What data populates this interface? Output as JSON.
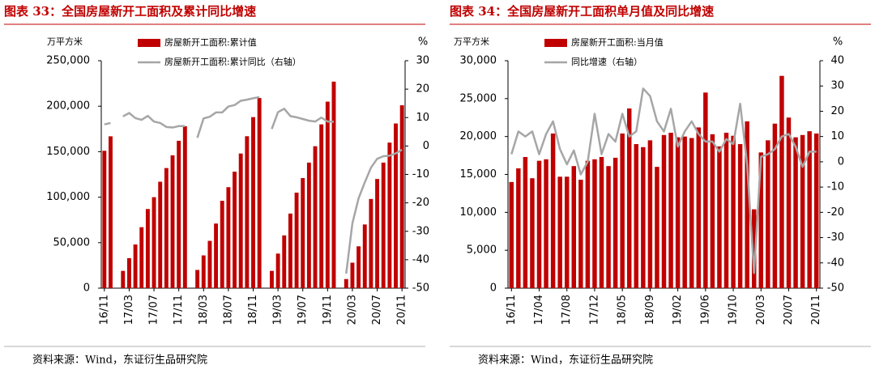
{
  "chart_data": [
    {
      "type": "bar_line",
      "title": "图表 33：全国房屋新开工面积及累计同比增速",
      "y_label": "万平方米",
      "y2_label": "%",
      "source": "资料来源：Wind，东证衍生品研究院",
      "categories": [
        "16/11",
        null,
        null,
        null,
        "17/03",
        null,
        null,
        null,
        "17/07",
        null,
        null,
        null,
        "17/11",
        null,
        null,
        null,
        "18/03",
        null,
        null,
        null,
        "18/07",
        null,
        null,
        null,
        "18/11",
        null,
        null,
        null,
        "19/03",
        null,
        null,
        null,
        "19/07",
        null,
        null,
        null,
        "19/11",
        null,
        null,
        null,
        "20/03",
        null,
        null,
        null,
        "20/07",
        null,
        null,
        null,
        "20/11"
      ],
      "series": [
        {
          "name": "房屋新开工面积:累计值",
          "color": "#c00000",
          "kind": "bar",
          "values": [
            151000,
            166900,
            null,
            19000,
            33000,
            48000,
            67000,
            87000,
            100000,
            117000,
            132000,
            146000,
            162000,
            178000,
            null,
            20000,
            36000,
            52000,
            71000,
            96000,
            111000,
            128000,
            148000,
            167000,
            188000,
            209000,
            null,
            19000,
            38000,
            58000,
            82000,
            105000,
            121000,
            138000,
            156000,
            180000,
            205000,
            227000,
            null,
            10000,
            28000,
            46000,
            70000,
            98000,
            120000,
            138000,
            160000,
            181000,
            201000
          ]
        },
        {
          "name": "房屋新开工面积:累计同比（右轴）",
          "color": "#a6a6a6",
          "kind": "line",
          "axis": "y2",
          "values": [
            7.6,
            8.1,
            null,
            10.4,
            11.6,
            9.8,
            9.2,
            10.6,
            8.6,
            8.1,
            6.7,
            6.5,
            7.0,
            7.0,
            null,
            2.9,
            9.7,
            10.3,
            11.8,
            11.8,
            13.9,
            14.4,
            15.9,
            16.3,
            16.8,
            17.2,
            null,
            6.0,
            11.9,
            13.1,
            10.5,
            10.1,
            9.5,
            8.9,
            8.6,
            10.0,
            8.6,
            8.5,
            null,
            -44.9,
            -27.2,
            -18.4,
            -12.8,
            -7.6,
            -4.5,
            -3.6,
            -3.4,
            -2.6,
            -1.3
          ]
        }
      ],
      "ylim": [
        0,
        250000
      ],
      "yticks": [
        0,
        {
          "value": 50000,
          "label": "50,000"
        },
        {
          "value": 100000,
          "label": "100,000"
        },
        {
          "value": 150000,
          "label": "150,000"
        },
        {
          "value": 200000,
          "label": "200,000"
        },
        {
          "value": 250000,
          "label": "250,000"
        }
      ],
      "y2lim": [
        -50,
        30
      ],
      "y2ticks": [
        -50,
        -40,
        -30,
        -20,
        -10,
        0,
        10,
        20,
        30
      ]
    },
    {
      "type": "bar_line",
      "title": "图表 34：全国房屋新开工面积单月值及同比增速",
      "y_label": "万平方米",
      "y2_label": "%",
      "source": "资料来源：Wind，东证衍生品研究院",
      "categories": [
        "16/11",
        null,
        null,
        null,
        "17/04",
        null,
        null,
        null,
        "17/08",
        null,
        null,
        null,
        "17/12",
        null,
        null,
        null,
        "18/05",
        null,
        null,
        null,
        "18/09",
        null,
        null,
        null,
        "19/02",
        null,
        null,
        null,
        "19/06",
        null,
        null,
        null,
        "19/10",
        null,
        null,
        null,
        "20/03",
        null,
        null,
        null,
        "20/07",
        null,
        null,
        null,
        "20/11"
      ],
      "series": [
        {
          "name": "房屋新开工面积:当月值",
          "color": "#c00000",
          "kind": "bar",
          "values": [
            14000,
            15800,
            17300,
            14500,
            16800,
            17000,
            20400,
            14700,
            14700,
            16100,
            14300,
            16800,
            17000,
            17300,
            16100,
            17200,
            20400,
            23700,
            19000,
            18600,
            19500,
            16000,
            20200,
            20500,
            19900,
            20000,
            19800,
            21200,
            25800,
            20300,
            18700,
            20500,
            20100,
            19000,
            22000,
            10400,
            17900,
            19500,
            21700,
            28000,
            22500,
            19900,
            20200,
            20700,
            20400
          ]
        },
        {
          "name": "同比增速（右轴）",
          "color": "#a6a6a6",
          "kind": "line",
          "axis": "y2",
          "values": [
            3,
            12,
            10,
            12,
            3,
            11,
            16,
            5,
            -1,
            4.5,
            -5,
            0,
            19,
            3,
            11,
            8,
            19,
            10,
            12,
            29,
            26,
            16,
            12,
            21,
            6,
            12,
            16,
            11,
            8,
            8,
            4,
            9,
            7,
            23,
            -1,
            -44,
            2,
            3,
            5,
            10,
            11,
            6,
            -2,
            4,
            4
          ]
        }
      ],
      "ylim": [
        0,
        30000
      ],
      "yticks": [
        0,
        {
          "value": 5000,
          "label": "5,000"
        },
        {
          "value": 10000,
          "label": "10,000"
        },
        {
          "value": 15000,
          "label": "15,000"
        },
        {
          "value": 20000,
          "label": "20,000"
        },
        {
          "value": 25000,
          "label": "25,000"
        },
        {
          "value": 30000,
          "label": "30,000"
        }
      ],
      "y2lim": [
        -50,
        40
      ],
      "y2ticks": [
        -50,
        -40,
        -30,
        -20,
        -10,
        0,
        10,
        20,
        30,
        40
      ]
    }
  ]
}
